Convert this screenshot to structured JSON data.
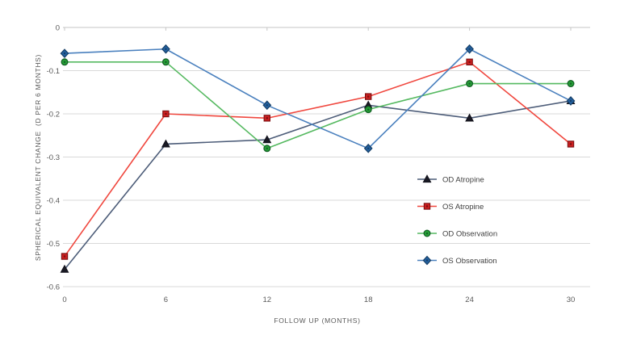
{
  "figure": {
    "background": "#FFFFFF"
  },
  "chart_data": {
    "type": "line",
    "title": "",
    "xlabel": "FOLLOW UP (MONTHS)",
    "ylabel": "SPHERICAL EQUIVALENT CHANGE  (D PER 6 MONTHS)",
    "x": [
      0,
      6,
      12,
      18,
      24,
      30
    ],
    "x_tick_labels": [
      "0",
      "6",
      "12",
      "18",
      "24",
      "30"
    ],
    "xlim": [
      0,
      30
    ],
    "ylim": [
      -0.6,
      0
    ],
    "y_ticks": [
      0,
      -0.1,
      -0.2,
      -0.3,
      -0.4,
      -0.5,
      -0.6
    ],
    "y_tick_labels": [
      "0",
      "-0.1",
      "-0.2",
      "-0.3",
      "-0.4",
      "-0.5",
      "-0.6"
    ],
    "grid": true,
    "legend_position": "inside-center-right",
    "colors": {
      "grid": "#D9D9D9",
      "zero_axis": "#C6C6C6",
      "tick_text": "#595959",
      "legend_text": "#3F3F3F"
    },
    "series": [
      {
        "name": "OD Atropine",
        "marker": "triangle",
        "line_color": "#4D5D79",
        "marker_fill": "#1A1A24",
        "marker_edge": "#10101A",
        "values": [
          -0.56,
          -0.27,
          -0.26,
          -0.18,
          -0.21,
          -0.17
        ]
      },
      {
        "name": "OS Atropine",
        "marker": "square",
        "line_color": "#F0473E",
        "marker_fill": "#D02020",
        "marker_edge": "#7E1113",
        "values": [
          -0.53,
          -0.2,
          -0.21,
          -0.16,
          -0.08,
          -0.27
        ]
      },
      {
        "name": "OD Observation",
        "marker": "circle",
        "line_color": "#55B960",
        "marker_fill": "#27A337",
        "marker_edge": "#156327",
        "values": [
          -0.08,
          -0.08,
          -0.28,
          -0.19,
          -0.13,
          -0.13
        ]
      },
      {
        "name": "OS Observation",
        "marker": "diamond",
        "line_color": "#4A80BE",
        "marker_fill": "#2361A0",
        "marker_edge": "#163E66",
        "values": [
          -0.06,
          -0.05,
          -0.18,
          -0.28,
          -0.05,
          -0.17
        ]
      }
    ]
  }
}
